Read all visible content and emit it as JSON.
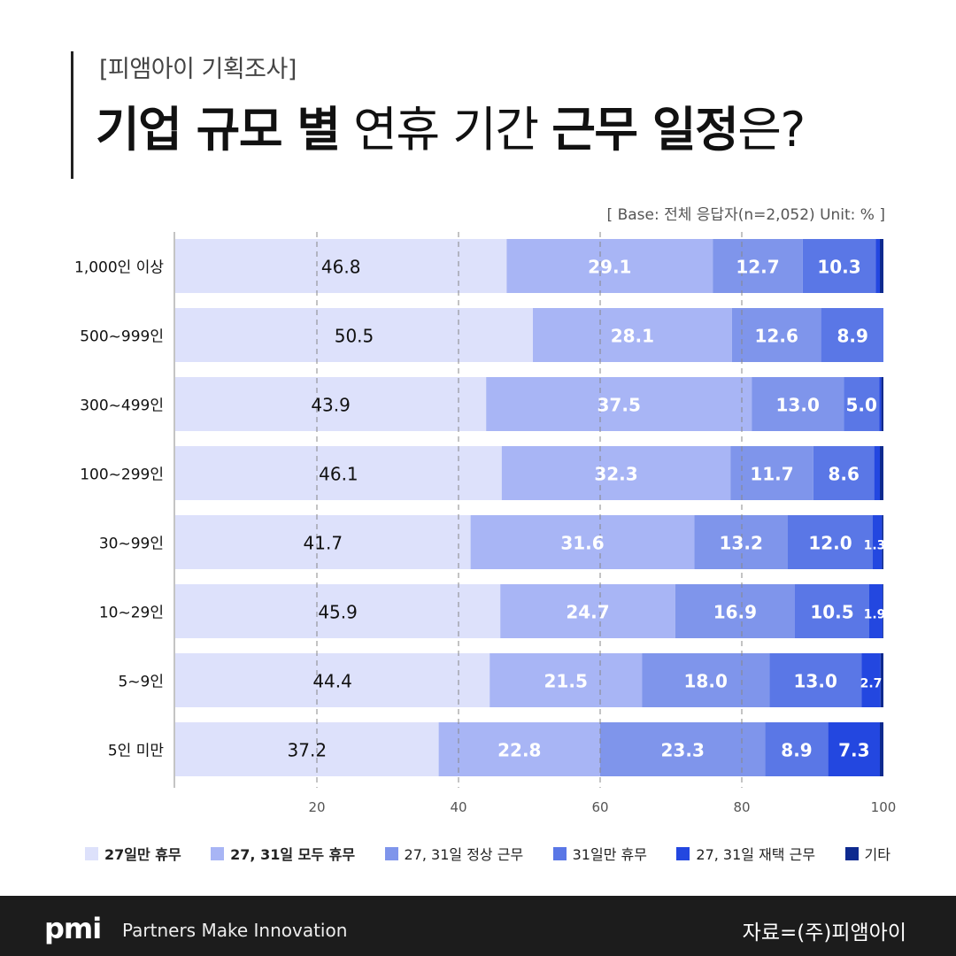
{
  "header": {
    "subtitle": "[피앰아이 기획조사]",
    "title_parts": [
      "기업 규모 별",
      "연휴 기간",
      "근무 일정",
      "은?"
    ]
  },
  "base_note": "[ Base: 전체 응답자(n=2,052) Unit: % ]",
  "chart_data": {
    "type": "bar",
    "orientation": "horizontal",
    "stacked": true,
    "xlim": [
      0,
      100
    ],
    "x_ticks": [
      20,
      40,
      60,
      80,
      100
    ],
    "grid": true,
    "legend_position": "bottom",
    "categories": [
      "1,000인 이상",
      "500~999인",
      "300~499인",
      "100~299인",
      "30~99인",
      "10~29인",
      "5~9인",
      "5인 미만"
    ],
    "series": [
      {
        "name": "27일만 휴무",
        "color": "#dde1fb",
        "label_color": "#111111",
        "values": [
          46.8,
          50.5,
          43.9,
          46.1,
          41.7,
          45.9,
          44.4,
          37.2
        ]
      },
      {
        "name": "27, 31일 모두 휴무",
        "color": "#a8b5f5",
        "label_color": "#ffffff",
        "values": [
          29.1,
          28.1,
          37.5,
          32.3,
          31.6,
          24.7,
          21.5,
          22.8
        ]
      },
      {
        "name": "27, 31일 정상 근무",
        "color": "#7f95eb",
        "label_color": "#ffffff",
        "values": [
          12.7,
          12.6,
          13.0,
          11.7,
          13.2,
          16.9,
          18.0,
          23.3
        ]
      },
      {
        "name": "31일만 휴무",
        "color": "#5a77e6",
        "label_color": "#ffffff",
        "values": [
          10.3,
          8.9,
          5.0,
          8.6,
          12.0,
          10.5,
          13.0,
          8.9
        ]
      },
      {
        "name": "27, 31일 재택 근무",
        "color": "#2347e0",
        "label_color": "#ffffff",
        "values": [
          0.6,
          0,
          0.3,
          0.8,
          1.3,
          1.9,
          2.7,
          7.3
        ]
      },
      {
        "name": "기타",
        "color": "#0e2a8f",
        "label_color": "#ffffff",
        "values": [
          0.5,
          0,
          0.3,
          0.5,
          0.2,
          0.1,
          0.4,
          0.5
        ]
      }
    ],
    "value_labels": [
      [
        "46.8",
        "29.1",
        "12.7",
        "10.3",
        "",
        ""
      ],
      [
        "50.5",
        "28.1",
        "12.6",
        "8.9",
        "",
        ""
      ],
      [
        "43.9",
        "37.5",
        "13.0",
        "5.0",
        "",
        ""
      ],
      [
        "46.1",
        "32.3",
        "11.7",
        "8.6",
        "",
        ""
      ],
      [
        "41.7",
        "31.6",
        "13.2",
        "12.0",
        "1.3",
        ""
      ],
      [
        "45.9",
        "24.7",
        "16.9",
        "10.5",
        "1.9",
        ""
      ],
      [
        "44.4",
        "21.5",
        "18.0",
        "13.0",
        "2.7",
        ""
      ],
      [
        "37.2",
        "22.8",
        "23.3",
        "8.9",
        "7.3",
        ""
      ]
    ]
  },
  "footer": {
    "logo": "pmi",
    "tagline": "Partners Make Innovation",
    "source": "자료=(주)피앰아이"
  }
}
